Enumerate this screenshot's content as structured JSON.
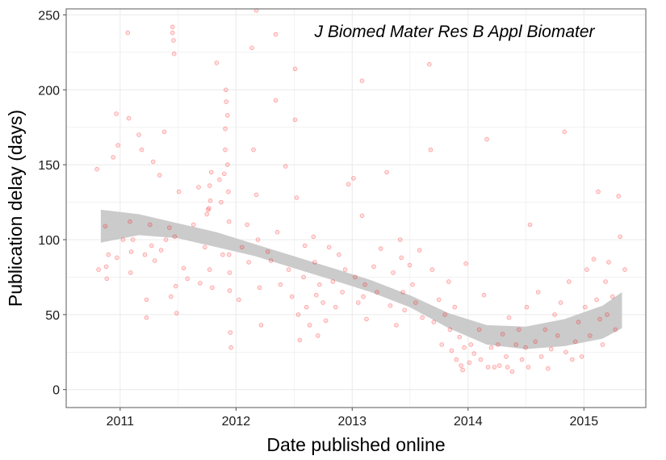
{
  "chart_data": {
    "type": "scatter",
    "annotation": "J Biomed Mater Res B Appl Biomater",
    "xlabel": "Date published online",
    "ylabel": "Publication delay (days)",
    "xlim": [
      "2010-07-15",
      "2015-07-15"
    ],
    "ylim": [
      -12,
      254
    ],
    "x_ticks": [
      "2011",
      "2012",
      "2013",
      "2014",
      "2015"
    ],
    "y_ticks": [
      0,
      50,
      100,
      150,
      200,
      250
    ],
    "grid": true,
    "colors": {
      "points": "#ff0000",
      "smooth_band": "#c8c8c8",
      "smooth_line": "#3366ff",
      "panel_border": "#7f7f7f",
      "grid": "#ebebeb"
    },
    "smooth": {
      "x": [
        "2010-11-01",
        "2011-03-01",
        "2011-07-01",
        "2011-11-01",
        "2012-03-01",
        "2012-07-01",
        "2012-11-01",
        "2013-03-01",
        "2013-07-01",
        "2013-11-01",
        "2014-03-01",
        "2014-07-01",
        "2014-11-01",
        "2015-03-01",
        "2015-05-01"
      ],
      "y": [
        109,
        110,
        106,
        100,
        93,
        85,
        77,
        69,
        59,
        46,
        37,
        35,
        38,
        45,
        53
      ],
      "ymin": [
        98,
        103,
        101,
        95,
        89,
        81,
        73,
        65,
        55,
        41,
        30,
        27,
        29,
        34,
        41
      ],
      "ymax": [
        120,
        117,
        111,
        105,
        97,
        89,
        81,
        73,
        63,
        51,
        43,
        42,
        47,
        56,
        65
      ]
    },
    "points": [
      {
        "x": "2010-10-20",
        "y": 147
      },
      {
        "x": "2010-10-25",
        "y": 80
      },
      {
        "x": "2010-11-15",
        "y": 109
      },
      {
        "x": "2010-11-18",
        "y": 82
      },
      {
        "x": "2010-11-20",
        "y": 74
      },
      {
        "x": "2010-11-25",
        "y": 90
      },
      {
        "x": "2010-12-10",
        "y": 155
      },
      {
        "x": "2010-12-20",
        "y": 184
      },
      {
        "x": "2010-12-25",
        "y": 163
      },
      {
        "x": "2010-12-22",
        "y": 88
      },
      {
        "x": "2011-01-10",
        "y": 100
      },
      {
        "x": "2011-01-25",
        "y": 238
      },
      {
        "x": "2011-01-28",
        "y": 181
      },
      {
        "x": "2011-02-01",
        "y": 112
      },
      {
        "x": "2011-02-05",
        "y": 92
      },
      {
        "x": "2011-02-03",
        "y": 78
      },
      {
        "x": "2011-02-10",
        "y": 100
      },
      {
        "x": "2011-03-01",
        "y": 170
      },
      {
        "x": "2011-03-10",
        "y": 160
      },
      {
        "x": "2011-03-20",
        "y": 90
      },
      {
        "x": "2011-03-25",
        "y": 60
      },
      {
        "x": "2011-03-25",
        "y": 48
      },
      {
        "x": "2011-04-05",
        "y": 110
      },
      {
        "x": "2011-04-10",
        "y": 96
      },
      {
        "x": "2011-04-15",
        "y": 152
      },
      {
        "x": "2011-04-20",
        "y": 86
      },
      {
        "x": "2011-05-05",
        "y": 143
      },
      {
        "x": "2011-05-10",
        "y": 93
      },
      {
        "x": "2011-05-20",
        "y": 172
      },
      {
        "x": "2011-05-25",
        "y": 100
      },
      {
        "x": "2011-06-05",
        "y": 108
      },
      {
        "x": "2011-06-10",
        "y": 62
      },
      {
        "x": "2011-06-15",
        "y": 242
      },
      {
        "x": "2011-06-15",
        "y": 238
      },
      {
        "x": "2011-06-18",
        "y": 233
      },
      {
        "x": "2011-06-20",
        "y": 224
      },
      {
        "x": "2011-06-22",
        "y": 102
      },
      {
        "x": "2011-06-25",
        "y": 69
      },
      {
        "x": "2011-06-28",
        "y": 51
      },
      {
        "x": "2011-07-05",
        "y": 132
      },
      {
        "x": "2011-07-20",
        "y": 81
      },
      {
        "x": "2011-08-01",
        "y": 74
      },
      {
        "x": "2011-08-20",
        "y": 110
      },
      {
        "x": "2011-09-05",
        "y": 135
      },
      {
        "x": "2011-09-10",
        "y": 71
      },
      {
        "x": "2011-09-25",
        "y": 95
      },
      {
        "x": "2011-10-01",
        "y": 117
      },
      {
        "x": "2011-10-05",
        "y": 120
      },
      {
        "x": "2011-10-08",
        "y": 121
      },
      {
        "x": "2011-10-10",
        "y": 136
      },
      {
        "x": "2011-10-12",
        "y": 126
      },
      {
        "x": "2011-10-15",
        "y": 145
      },
      {
        "x": "2011-10-10",
        "y": 80
      },
      {
        "x": "2011-10-18",
        "y": 68
      },
      {
        "x": "2011-11-01",
        "y": 218
      },
      {
        "x": "2011-11-10",
        "y": 140
      },
      {
        "x": "2011-11-15",
        "y": 125
      },
      {
        "x": "2011-11-20",
        "y": 90
      },
      {
        "x": "2011-11-25",
        "y": 144
      },
      {
        "x": "2011-11-28",
        "y": 160
      },
      {
        "x": "2011-11-28",
        "y": 174
      },
      {
        "x": "2011-11-30",
        "y": 200
      },
      {
        "x": "2011-12-01",
        "y": 192
      },
      {
        "x": "2011-12-05",
        "y": 183
      },
      {
        "x": "2011-12-05",
        "y": 150
      },
      {
        "x": "2011-12-08",
        "y": 132
      },
      {
        "x": "2011-12-10",
        "y": 112
      },
      {
        "x": "2011-12-10",
        "y": 90
      },
      {
        "x": "2011-12-12",
        "y": 78
      },
      {
        "x": "2011-12-12",
        "y": 66
      },
      {
        "x": "2011-12-14",
        "y": 38
      },
      {
        "x": "2011-12-16",
        "y": 28
      },
      {
        "x": "2012-01-10",
        "y": 60
      },
      {
        "x": "2012-01-20",
        "y": 95
      },
      {
        "x": "2012-02-05",
        "y": 110
      },
      {
        "x": "2012-02-10",
        "y": 85
      },
      {
        "x": "2012-02-20",
        "y": 228
      },
      {
        "x": "2012-02-25",
        "y": 160
      },
      {
        "x": "2012-03-05",
        "y": 253
      },
      {
        "x": "2012-03-05",
        "y": 130
      },
      {
        "x": "2012-03-10",
        "y": 100
      },
      {
        "x": "2012-03-15",
        "y": 68
      },
      {
        "x": "2012-03-20",
        "y": 43
      },
      {
        "x": "2012-04-10",
        "y": 92
      },
      {
        "x": "2012-04-20",
        "y": 86
      },
      {
        "x": "2012-05-05",
        "y": 193
      },
      {
        "x": "2012-05-05",
        "y": 237
      },
      {
        "x": "2012-05-10",
        "y": 105
      },
      {
        "x": "2012-05-20",
        "y": 70
      },
      {
        "x": "2012-06-05",
        "y": 149
      },
      {
        "x": "2012-06-15",
        "y": 80
      },
      {
        "x": "2012-06-25",
        "y": 62
      },
      {
        "x": "2012-07-05",
        "y": 214
      },
      {
        "x": "2012-07-05",
        "y": 180
      },
      {
        "x": "2012-07-10",
        "y": 128
      },
      {
        "x": "2012-07-15",
        "y": 50
      },
      {
        "x": "2012-07-20",
        "y": 33
      },
      {
        "x": "2012-08-01",
        "y": 75
      },
      {
        "x": "2012-08-05",
        "y": 96
      },
      {
        "x": "2012-08-10",
        "y": 55
      },
      {
        "x": "2012-08-20",
        "y": 43
      },
      {
        "x": "2012-09-01",
        "y": 102
      },
      {
        "x": "2012-09-05",
        "y": 85
      },
      {
        "x": "2012-09-10",
        "y": 63
      },
      {
        "x": "2012-09-15",
        "y": 36
      },
      {
        "x": "2012-09-20",
        "y": 70
      },
      {
        "x": "2012-10-01",
        "y": 58
      },
      {
        "x": "2012-10-10",
        "y": 46
      },
      {
        "x": "2012-10-20",
        "y": 95
      },
      {
        "x": "2012-11-01",
        "y": 72
      },
      {
        "x": "2012-11-10",
        "y": 55
      },
      {
        "x": "2012-11-20",
        "y": 90
      },
      {
        "x": "2012-12-01",
        "y": 65
      },
      {
        "x": "2012-12-10",
        "y": 80
      },
      {
        "x": "2012-12-20",
        "y": 137
      },
      {
        "x": "2013-01-05",
        "y": 141
      },
      {
        "x": "2013-01-10",
        "y": 75
      },
      {
        "x": "2013-01-20",
        "y": 58
      },
      {
        "x": "2013-02-01",
        "y": 206
      },
      {
        "x": "2013-02-01",
        "y": 116
      },
      {
        "x": "2013-02-05",
        "y": 62
      },
      {
        "x": "2013-02-10",
        "y": 70
      },
      {
        "x": "2013-02-15",
        "y": 47
      },
      {
        "x": "2013-03-10",
        "y": 82
      },
      {
        "x": "2013-03-20",
        "y": 65
      },
      {
        "x": "2013-04-01",
        "y": 94
      },
      {
        "x": "2013-04-20",
        "y": 145
      },
      {
        "x": "2013-05-01",
        "y": 56
      },
      {
        "x": "2013-05-10",
        "y": 78
      },
      {
        "x": "2013-05-20",
        "y": 43
      },
      {
        "x": "2013-06-01",
        "y": 100
      },
      {
        "x": "2013-06-05",
        "y": 88
      },
      {
        "x": "2013-06-10",
        "y": 65
      },
      {
        "x": "2013-06-15",
        "y": 53
      },
      {
        "x": "2013-07-01",
        "y": 83
      },
      {
        "x": "2013-07-10",
        "y": 70
      },
      {
        "x": "2013-07-20",
        "y": 58
      },
      {
        "x": "2013-08-01",
        "y": 93
      },
      {
        "x": "2013-08-10",
        "y": 48
      },
      {
        "x": "2013-09-01",
        "y": 217
      },
      {
        "x": "2013-09-05",
        "y": 160
      },
      {
        "x": "2013-09-10",
        "y": 80
      },
      {
        "x": "2013-09-15",
        "y": 45
      },
      {
        "x": "2013-10-01",
        "y": 60
      },
      {
        "x": "2013-10-10",
        "y": 30
      },
      {
        "x": "2013-10-20",
        "y": 50
      },
      {
        "x": "2013-11-01",
        "y": 72
      },
      {
        "x": "2013-11-05",
        "y": 40
      },
      {
        "x": "2013-11-10",
        "y": 26
      },
      {
        "x": "2013-11-20",
        "y": 55
      },
      {
        "x": "2013-11-25",
        "y": 20
      },
      {
        "x": "2013-12-05",
        "y": 35
      },
      {
        "x": "2013-12-10",
        "y": 16
      },
      {
        "x": "2013-12-15",
        "y": 13
      },
      {
        "x": "2013-12-20",
        "y": 28
      },
      {
        "x": "2013-12-25",
        "y": 84
      },
      {
        "x": "2014-01-05",
        "y": 18
      },
      {
        "x": "2014-01-10",
        "y": 30
      },
      {
        "x": "2014-01-20",
        "y": 24
      },
      {
        "x": "2014-02-05",
        "y": 40
      },
      {
        "x": "2014-02-10",
        "y": 20
      },
      {
        "x": "2014-02-20",
        "y": 63
      },
      {
        "x": "2014-03-01",
        "y": 167
      },
      {
        "x": "2014-03-05",
        "y": 15
      },
      {
        "x": "2014-03-15",
        "y": 28
      },
      {
        "x": "2014-03-25",
        "y": 15
      },
      {
        "x": "2014-04-05",
        "y": 30
      },
      {
        "x": "2014-04-10",
        "y": 16
      },
      {
        "x": "2014-04-20",
        "y": 37
      },
      {
        "x": "2014-05-01",
        "y": 22
      },
      {
        "x": "2014-05-05",
        "y": 15
      },
      {
        "x": "2014-05-10",
        "y": 48
      },
      {
        "x": "2014-05-20",
        "y": 12
      },
      {
        "x": "2014-06-01",
        "y": 30
      },
      {
        "x": "2014-06-10",
        "y": 40
      },
      {
        "x": "2014-06-20",
        "y": 20
      },
      {
        "x": "2014-07-01",
        "y": 28
      },
      {
        "x": "2014-07-05",
        "y": 55
      },
      {
        "x": "2014-07-10",
        "y": 15
      },
      {
        "x": "2014-07-15",
        "y": 110
      },
      {
        "x": "2014-08-01",
        "y": 32
      },
      {
        "x": "2014-08-10",
        "y": 65
      },
      {
        "x": "2014-08-20",
        "y": 22
      },
      {
        "x": "2014-09-01",
        "y": 40
      },
      {
        "x": "2014-09-10",
        "y": 14
      },
      {
        "x": "2014-09-20",
        "y": 27
      },
      {
        "x": "2014-10-01",
        "y": 50
      },
      {
        "x": "2014-10-10",
        "y": 36
      },
      {
        "x": "2014-10-20",
        "y": 58
      },
      {
        "x": "2014-11-01",
        "y": 172
      },
      {
        "x": "2014-11-05",
        "y": 25
      },
      {
        "x": "2014-11-15",
        "y": 72
      },
      {
        "x": "2014-11-25",
        "y": 20
      },
      {
        "x": "2014-12-05",
        "y": 32
      },
      {
        "x": "2014-12-15",
        "y": 45
      },
      {
        "x": "2014-12-25",
        "y": 22
      },
      {
        "x": "2015-01-05",
        "y": 55
      },
      {
        "x": "2015-01-10",
        "y": 80
      },
      {
        "x": "2015-01-20",
        "y": 36
      },
      {
        "x": "2015-02-01",
        "y": 87
      },
      {
        "x": "2015-02-10",
        "y": 60
      },
      {
        "x": "2015-02-15",
        "y": 132
      },
      {
        "x": "2015-02-20",
        "y": 47
      },
      {
        "x": "2015-03-01",
        "y": 30
      },
      {
        "x": "2015-03-10",
        "y": 72
      },
      {
        "x": "2015-03-15",
        "y": 50
      },
      {
        "x": "2015-03-20",
        "y": 85
      },
      {
        "x": "2015-04-01",
        "y": 62
      },
      {
        "x": "2015-04-10",
        "y": 40
      },
      {
        "x": "2015-04-20",
        "y": 129
      },
      {
        "x": "2015-04-25",
        "y": 102
      },
      {
        "x": "2015-05-10",
        "y": 80
      }
    ]
  }
}
